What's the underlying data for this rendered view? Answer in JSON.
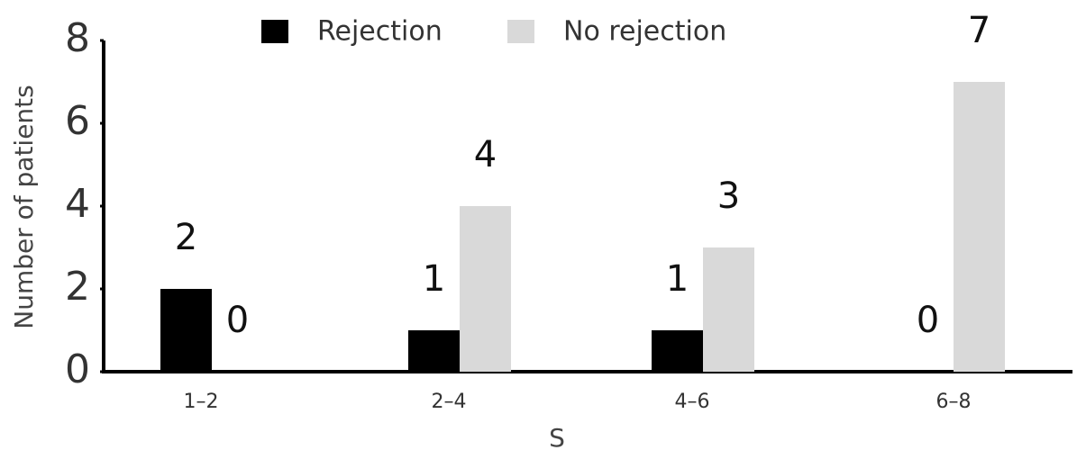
{
  "chart_data": {
    "type": "bar",
    "categories": [
      "1–2",
      "2–4",
      "4–6",
      "6–8"
    ],
    "series": [
      {
        "name": "Rejection",
        "color": "#000000",
        "values": [
          2,
          1,
          1,
          0
        ]
      },
      {
        "name": "No rejection",
        "color": "#d9d9d9",
        "values": [
          0,
          4,
          3,
          7
        ]
      }
    ],
    "x_label": "S",
    "y_label": "Number of patients",
    "ylim": [
      0,
      8
    ],
    "yticks": [
      0,
      2,
      4,
      6,
      8
    ],
    "legend": "top"
  }
}
